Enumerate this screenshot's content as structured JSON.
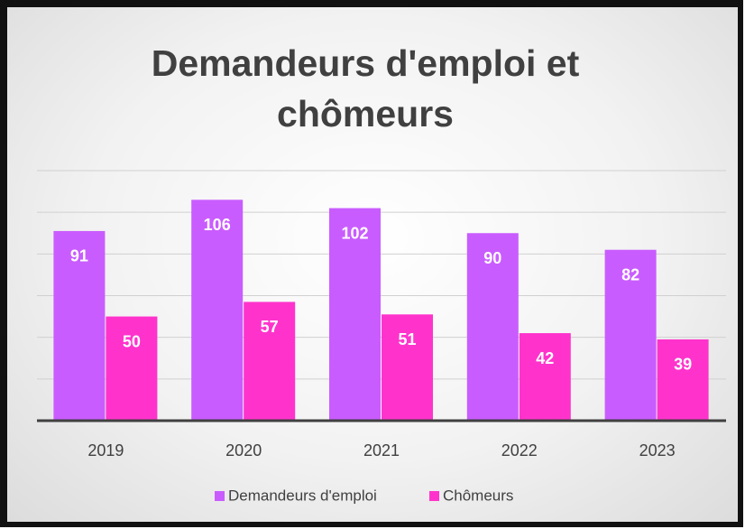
{
  "chart_data": {
    "type": "bar",
    "title": "Demandeurs d'emploi et chômeurs",
    "categories": [
      "2019",
      "2020",
      "2021",
      "2022",
      "2023"
    ],
    "series": [
      {
        "name": "Demandeurs d'emploi",
        "color": "#c95cff",
        "values": [
          91,
          106,
          102,
          90,
          82
        ]
      },
      {
        "name": "Chômeurs",
        "color": "#ff33cc",
        "values": [
          50,
          57,
          51,
          42,
          39
        ]
      }
    ],
    "ylim": [
      0,
      120
    ],
    "yticks": [
      0,
      20,
      40,
      60,
      80,
      100,
      120
    ],
    "grid": true,
    "legend": "bottom"
  }
}
